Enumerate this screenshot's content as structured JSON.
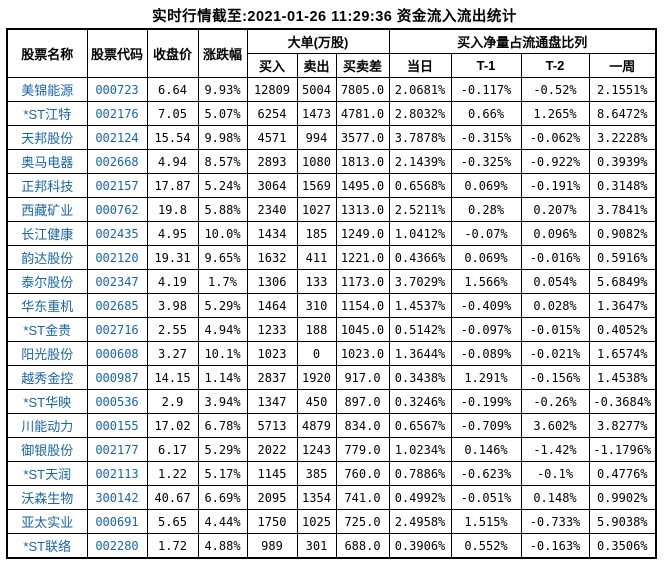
{
  "colors": {
    "link_blue": "#1565ad",
    "text": "#000000",
    "border": "#000000",
    "background": "#ffffff"
  },
  "chart_data": {
    "type": "table",
    "title": "实时行情截至:2021-01-26 11:29:36 资金流入流出统计",
    "headers": {
      "stock_name": "股票名称",
      "stock_code": "股票代码",
      "close_price": "收盘价",
      "change_pct": "涨跌幅",
      "big_orders_group": "大单(万股)",
      "buy": "买入",
      "sell": "卖出",
      "buy_sell_diff": "买卖差",
      "net_buy_ratio_group": "买入净量占流通盘比列",
      "today": "当日",
      "t_minus_1": "T-1",
      "t_minus_2": "T-2",
      "one_week": "一周"
    },
    "rows": [
      {
        "name": "美锦能源",
        "code": "000723",
        "close": "6.64",
        "change": "9.93%",
        "buy": "12809",
        "sell": "5004",
        "diff": "7805.0",
        "today": "2.0681%",
        "t1": "-0.117%",
        "t2": "-0.52%",
        "week": "2.1551%"
      },
      {
        "name": "*ST江特",
        "code": "002176",
        "close": "7.05",
        "change": "5.07%",
        "buy": "6254",
        "sell": "1473",
        "diff": "4781.0",
        "today": "2.8032%",
        "t1": "0.66%",
        "t2": "1.265%",
        "week": "8.6472%"
      },
      {
        "name": "天邦股份",
        "code": "002124",
        "close": "15.54",
        "change": "9.98%",
        "buy": "4571",
        "sell": "994",
        "diff": "3577.0",
        "today": "3.7878%",
        "t1": "-0.315%",
        "t2": "-0.062%",
        "week": "3.2228%"
      },
      {
        "name": "奥马电器",
        "code": "002668",
        "close": "4.94",
        "change": "8.57%",
        "buy": "2893",
        "sell": "1080",
        "diff": "1813.0",
        "today": "2.1439%",
        "t1": "-0.325%",
        "t2": "-0.922%",
        "week": "0.3939%"
      },
      {
        "name": "正邦科技",
        "code": "002157",
        "close": "17.87",
        "change": "5.24%",
        "buy": "3064",
        "sell": "1569",
        "diff": "1495.0",
        "today": "0.6568%",
        "t1": "0.069%",
        "t2": "-0.191%",
        "week": "0.3148%"
      },
      {
        "name": "西藏矿业",
        "code": "000762",
        "close": "19.8",
        "change": "5.88%",
        "buy": "2340",
        "sell": "1027",
        "diff": "1313.0",
        "today": "2.5211%",
        "t1": "0.28%",
        "t2": "0.207%",
        "week": "3.7841%"
      },
      {
        "name": "长江健康",
        "code": "002435",
        "close": "4.95",
        "change": "10.0%",
        "buy": "1434",
        "sell": "185",
        "diff": "1249.0",
        "today": "1.0412%",
        "t1": "-0.07%",
        "t2": "0.096%",
        "week": "0.9082%"
      },
      {
        "name": "韵达股份",
        "code": "002120",
        "close": "19.31",
        "change": "9.65%",
        "buy": "1632",
        "sell": "411",
        "diff": "1221.0",
        "today": "0.4366%",
        "t1": "0.069%",
        "t2": "-0.016%",
        "week": "0.5916%"
      },
      {
        "name": "泰尔股份",
        "code": "002347",
        "close": "4.19",
        "change": "1.7%",
        "buy": "1306",
        "sell": "133",
        "diff": "1173.0",
        "today": "3.7029%",
        "t1": "1.566%",
        "t2": "0.054%",
        "week": "5.6849%"
      },
      {
        "name": "华东重机",
        "code": "002685",
        "close": "3.98",
        "change": "5.29%",
        "buy": "1464",
        "sell": "310",
        "diff": "1154.0",
        "today": "1.4537%",
        "t1": "-0.409%",
        "t2": "0.028%",
        "week": "1.3647%"
      },
      {
        "name": "*ST金贵",
        "code": "002716",
        "close": "2.55",
        "change": "4.94%",
        "buy": "1233",
        "sell": "188",
        "diff": "1045.0",
        "today": "0.5142%",
        "t1": "-0.097%",
        "t2": "-0.015%",
        "week": "0.4052%"
      },
      {
        "name": "阳光股份",
        "code": "000608",
        "close": "3.27",
        "change": "10.1%",
        "buy": "1023",
        "sell": "0",
        "diff": "1023.0",
        "today": "1.3644%",
        "t1": "-0.089%",
        "t2": "-0.021%",
        "week": "1.6574%"
      },
      {
        "name": "越秀金控",
        "code": "000987",
        "close": "14.15",
        "change": "1.14%",
        "buy": "2837",
        "sell": "1920",
        "diff": "917.0",
        "today": "0.3438%",
        "t1": "1.291%",
        "t2": "-0.156%",
        "week": "1.4538%"
      },
      {
        "name": "*ST华映",
        "code": "000536",
        "close": "2.9",
        "change": "3.94%",
        "buy": "1347",
        "sell": "450",
        "diff": "897.0",
        "today": "0.3246%",
        "t1": "-0.199%",
        "t2": "-0.26%",
        "week": "-0.3684%"
      },
      {
        "name": "川能动力",
        "code": "000155",
        "close": "17.02",
        "change": "6.78%",
        "buy": "5713",
        "sell": "4879",
        "diff": "834.0",
        "today": "0.6567%",
        "t1": "-0.709%",
        "t2": "3.602%",
        "week": "3.8277%"
      },
      {
        "name": "御银股份",
        "code": "002177",
        "close": "6.17",
        "change": "5.29%",
        "buy": "2022",
        "sell": "1243",
        "diff": "779.0",
        "today": "1.0234%",
        "t1": "0.146%",
        "t2": "-1.42%",
        "week": "-1.1796%"
      },
      {
        "name": "*ST天润",
        "code": "002113",
        "close": "1.22",
        "change": "5.17%",
        "buy": "1145",
        "sell": "385",
        "diff": "760.0",
        "today": "0.7886%",
        "t1": "-0.623%",
        "t2": "-0.1%",
        "week": "0.4776%"
      },
      {
        "name": "沃森生物",
        "code": "300142",
        "close": "40.67",
        "change": "6.69%",
        "buy": "2095",
        "sell": "1354",
        "diff": "741.0",
        "today": "0.4992%",
        "t1": "-0.051%",
        "t2": "0.148%",
        "week": "0.9902%"
      },
      {
        "name": "亚太实业",
        "code": "000691",
        "close": "5.65",
        "change": "4.44%",
        "buy": "1750",
        "sell": "1025",
        "diff": "725.0",
        "today": "2.4958%",
        "t1": "1.515%",
        "t2": "-0.733%",
        "week": "5.9038%"
      },
      {
        "name": "*ST联络",
        "code": "002280",
        "close": "1.72",
        "change": "4.88%",
        "buy": "989",
        "sell": "301",
        "diff": "688.0",
        "today": "0.3906%",
        "t1": "0.552%",
        "t2": "-0.163%",
        "week": "0.3506%"
      }
    ]
  }
}
